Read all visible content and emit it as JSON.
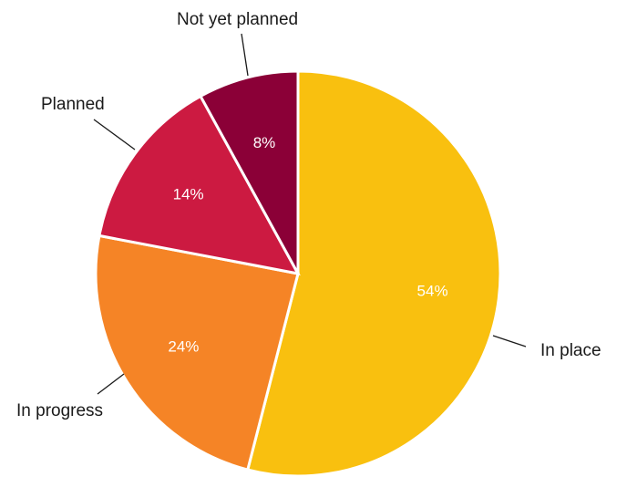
{
  "chart_data": {
    "type": "pie",
    "start_angle_deg": 0,
    "direction": "clockwise",
    "title": "",
    "slices": [
      {
        "label": "In place",
        "value": 54,
        "value_label": "54%",
        "color": "#F9C00F"
      },
      {
        "label": "In progress",
        "value": 24,
        "value_label": "24%",
        "color": "#F58426"
      },
      {
        "label": "Planned",
        "value": 14,
        "value_label": "14%",
        "color": "#CC1A41"
      },
      {
        "label": "Not yet planned",
        "value": 8,
        "value_label": "8%",
        "color": "#8B0037"
      }
    ]
  }
}
